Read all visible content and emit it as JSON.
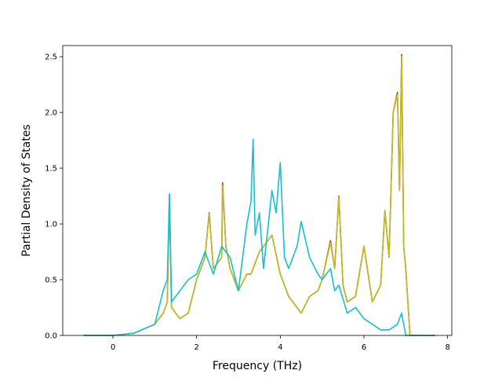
{
  "chart_data": {
    "type": "line",
    "title": "",
    "xlabel": "Frequency (THz)",
    "ylabel": "Partial Density of States",
    "xlim": [
      -1.2,
      8.1
    ],
    "ylim": [
      0.0,
      2.6
    ],
    "xticks": [
      0,
      2,
      4,
      6,
      8
    ],
    "xtick_labels": [
      "0",
      "2",
      "4",
      "6",
      "8"
    ],
    "yticks": [
      0.0,
      0.5,
      1.0,
      1.5,
      2.0,
      2.5
    ],
    "ytick_labels": [
      "0.0",
      "0.5",
      "1.0",
      "1.5",
      "2.0",
      "2.5"
    ],
    "grid": false,
    "legend": "none",
    "series": [
      {
        "color": "#d62728",
        "x": [
          -0.7,
          0.0,
          0.5,
          1.0,
          1.2,
          1.3,
          1.35,
          1.4,
          1.6,
          1.8,
          2.0,
          2.2,
          2.3,
          2.4,
          2.5,
          2.6,
          2.62,
          2.7,
          2.8,
          3.0,
          3.2,
          3.3,
          3.5,
          3.8,
          4.0,
          4.2,
          4.4,
          4.5,
          4.7,
          4.9,
          5.0,
          5.2,
          5.3,
          5.4,
          5.5,
          5.6,
          5.8,
          6.0,
          6.2,
          6.4,
          6.5,
          6.6,
          6.7,
          6.8,
          6.85,
          6.9,
          6.95,
          7.0,
          7.1,
          7.7
        ],
        "y": [
          0.0,
          0.0,
          0.02,
          0.1,
          0.2,
          0.3,
          1.26,
          0.25,
          0.15,
          0.2,
          0.5,
          0.7,
          1.1,
          0.6,
          0.65,
          0.7,
          1.37,
          0.8,
          0.6,
          0.4,
          0.55,
          0.55,
          0.75,
          0.9,
          0.55,
          0.35,
          0.25,
          0.2,
          0.35,
          0.4,
          0.5,
          0.85,
          0.6,
          1.25,
          0.45,
          0.3,
          0.35,
          0.8,
          0.3,
          0.45,
          1.12,
          0.7,
          2.0,
          2.18,
          1.3,
          2.52,
          0.8,
          0.6,
          0.0,
          0.0
        ]
      },
      {
        "color": "#bcbd22",
        "x": [
          -0.7,
          0.0,
          0.5,
          1.0,
          1.2,
          1.3,
          1.35,
          1.4,
          1.6,
          1.8,
          2.0,
          2.2,
          2.3,
          2.4,
          2.5,
          2.6,
          2.62,
          2.7,
          2.8,
          3.0,
          3.2,
          3.3,
          3.5,
          3.8,
          4.0,
          4.2,
          4.4,
          4.5,
          4.7,
          4.9,
          5.0,
          5.2,
          5.3,
          5.4,
          5.5,
          5.6,
          5.8,
          6.0,
          6.2,
          6.4,
          6.5,
          6.6,
          6.7,
          6.8,
          6.85,
          6.9,
          6.95,
          7.0,
          7.1,
          7.7
        ],
        "y": [
          0.0,
          0.0,
          0.02,
          0.1,
          0.2,
          0.3,
          1.24,
          0.25,
          0.15,
          0.2,
          0.5,
          0.7,
          1.09,
          0.6,
          0.65,
          0.7,
          1.34,
          0.8,
          0.6,
          0.4,
          0.55,
          0.55,
          0.75,
          0.9,
          0.55,
          0.35,
          0.25,
          0.2,
          0.35,
          0.4,
          0.5,
          0.83,
          0.6,
          1.24,
          0.45,
          0.3,
          0.35,
          0.8,
          0.3,
          0.45,
          1.12,
          0.7,
          2.0,
          2.16,
          1.3,
          2.5,
          0.8,
          0.6,
          0.0,
          0.0
        ]
      },
      {
        "color": "#17becf",
        "x": [
          -0.7,
          0.0,
          0.5,
          1.0,
          1.2,
          1.3,
          1.35,
          1.4,
          1.6,
          1.8,
          2.0,
          2.2,
          2.4,
          2.6,
          2.8,
          3.0,
          3.2,
          3.3,
          3.35,
          3.4,
          3.5,
          3.6,
          3.8,
          3.9,
          4.0,
          4.1,
          4.2,
          4.4,
          4.5,
          4.7,
          4.9,
          5.0,
          5.2,
          5.3,
          5.4,
          5.6,
          5.8,
          6.0,
          6.2,
          6.4,
          6.6,
          6.8,
          6.9,
          7.0,
          7.1,
          7.7
        ],
        "y": [
          0.0,
          0.0,
          0.02,
          0.1,
          0.4,
          0.5,
          1.27,
          0.3,
          0.4,
          0.5,
          0.55,
          0.75,
          0.55,
          0.8,
          0.7,
          0.4,
          1.0,
          1.2,
          1.76,
          0.9,
          1.1,
          0.6,
          1.3,
          1.1,
          1.55,
          0.7,
          0.6,
          0.8,
          1.02,
          0.7,
          0.55,
          0.5,
          0.6,
          0.4,
          0.45,
          0.2,
          0.25,
          0.15,
          0.1,
          0.05,
          0.05,
          0.1,
          0.2,
          0.0,
          0.0,
          0.0
        ]
      }
    ]
  }
}
